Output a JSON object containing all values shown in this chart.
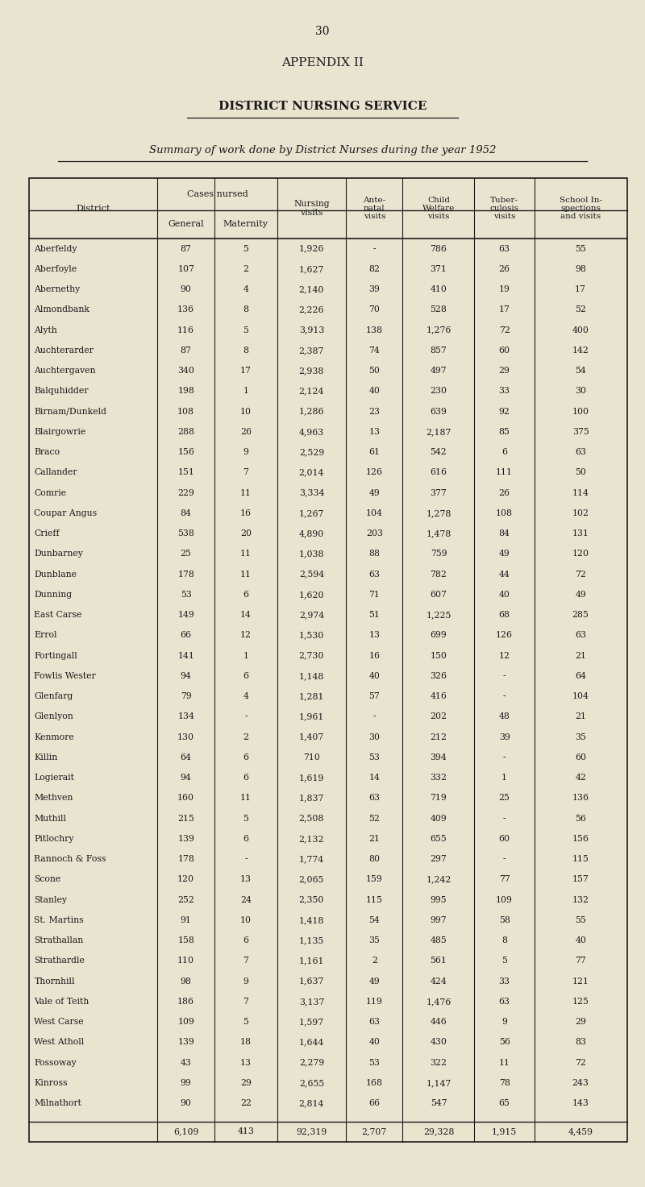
{
  "page_number": "30",
  "appendix_title": "APPENDIX II",
  "section_title": "DISTRICT NURSING SERVICE",
  "subtitle": "Summary of work done by District Nurses during the year 1952",
  "bg_color": "#e8e4d0",
  "text_color": "#1a1a1a",
  "districts": [
    "Aberfeldy",
    "Aberfoyle",
    "Abernethy",
    "Almondbank",
    "Alyth",
    "Auchterarder",
    "Auchtergaven",
    "Balquhidder",
    "Birnam/Dunkeld",
    "Blairgowrie",
    "Braco",
    "Callander",
    "Comrie",
    "Coupar Angus",
    "Crieff",
    "Dunbarney",
    "Dunblane",
    "Dunning",
    "East Carse",
    "Errol",
    "Fortingall",
    "Fowlis Wester",
    "Glenfarg",
    "Glenlyon",
    "Kenmore",
    "Killin",
    "Logierait",
    "Methven",
    "Muthill",
    "Pitlochry",
    "Rannoch & Foss",
    "Scone",
    "Stanley",
    "St. Martins",
    "Strathallan",
    "Strathardle",
    "Thornhill",
    "Vale of Teith",
    "West Carse",
    "West Atholl",
    "Fossoway",
    "Kinross",
    "Milnathort"
  ],
  "general": [
    87,
    107,
    90,
    136,
    116,
    87,
    340,
    198,
    108,
    288,
    156,
    151,
    229,
    84,
    538,
    25,
    178,
    53,
    149,
    66,
    141,
    94,
    79,
    134,
    130,
    64,
    94,
    160,
    215,
    139,
    178,
    120,
    252,
    91,
    158,
    110,
    98,
    186,
    109,
    139,
    43,
    99,
    90
  ],
  "maternity": [
    "5",
    "2",
    "4",
    "8",
    "5",
    "8",
    "17",
    "1",
    "10",
    "26",
    "9",
    "7",
    "11",
    "16",
    "20",
    "11",
    "11",
    "6",
    "14",
    "12",
    "1",
    "6",
    "4",
    "-",
    "2",
    "6",
    "6",
    "11",
    "5",
    "6",
    "-",
    "13",
    "24",
    "10",
    "6",
    "7",
    "9",
    "7",
    "5",
    "18",
    "13",
    "29",
    "22"
  ],
  "nursing_visits_display": [
    "1,926",
    "1,627",
    "2,140",
    "2,226",
    "3,913",
    "2,387",
    "2,938",
    "2,124",
    "1,286",
    "4,963",
    "2,529",
    "2,014",
    "3,334",
    "1,267",
    "4,890",
    "1,038",
    "2,594",
    "1,620",
    "2,974",
    "1,530",
    "2,730",
    "1,148",
    "1,281",
    "1,961",
    "1,407",
    "710",
    "1,619",
    "1,837",
    "2,508",
    "2,132",
    "1,774",
    "2,065",
    "2,350",
    "1,418",
    "1,135",
    "1,161",
    "1,637",
    "3,137",
    "1,597",
    "1,644",
    "2,279",
    "2,655",
    "2,814"
  ],
  "ante_natal": [
    "-",
    "82",
    "39",
    "70",
    "138",
    "74",
    "50",
    "40",
    "23",
    "13",
    "61",
    "126",
    "49",
    "104",
    "203",
    "88",
    "63",
    "71",
    "51",
    "13",
    "16",
    "40",
    "57",
    "-",
    "30",
    "53",
    "14",
    "63",
    "52",
    "21",
    "80",
    "159",
    "115",
    "54",
    "35",
    "2",
    "49",
    "119",
    "63",
    "40",
    "53",
    "168",
    "66"
  ],
  "child_welfare_display": [
    "786",
    "371",
    "410",
    "528",
    "1,276",
    "857",
    "497",
    "230",
    "639",
    "2,187",
    "542",
    "616",
    "377",
    "1,278",
    "1,478",
    "759",
    "782",
    "607",
    "1,225",
    "699",
    "150",
    "326",
    "416",
    "202",
    "212",
    "394",
    "332",
    "719",
    "409",
    "655",
    "297",
    "1,242",
    "995",
    "997",
    "485",
    "561",
    "424",
    "1,476",
    "446",
    "430",
    "322",
    "1,147",
    "547"
  ],
  "tuberculosis": [
    "63",
    "26",
    "19",
    "17",
    "72",
    "60",
    "29",
    "33",
    "92",
    "85",
    "6",
    "111",
    "26",
    "108",
    "84",
    "49",
    "44",
    "40",
    "68",
    "126",
    "12",
    "-",
    "-",
    "48",
    "39",
    "-",
    "1",
    "25",
    "-",
    "60",
    "-",
    "77",
    "109",
    "58",
    "8",
    "5",
    "33",
    "63",
    "9",
    "56",
    "11",
    "78",
    "65"
  ],
  "school_inspections": [
    "55",
    "98",
    "17",
    "52",
    "400",
    "142",
    "54",
    "30",
    "100",
    "375",
    "63",
    "50",
    "114",
    "102",
    "131",
    "120",
    "72",
    "49",
    "285",
    "63",
    "21",
    "64",
    "104",
    "21",
    "35",
    "60",
    "42",
    "136",
    "56",
    "156",
    "115",
    "157",
    "132",
    "55",
    "40",
    "77",
    "121",
    "125",
    "29",
    "83",
    "72",
    "243",
    "143"
  ],
  "totals": {
    "general": "6,109",
    "maternity": "413",
    "nursing_visits": "92,319",
    "ante_natal": "2,707",
    "child_welfare": "29,328",
    "tuberculosis": "1,915",
    "school_inspections": "4,459"
  }
}
